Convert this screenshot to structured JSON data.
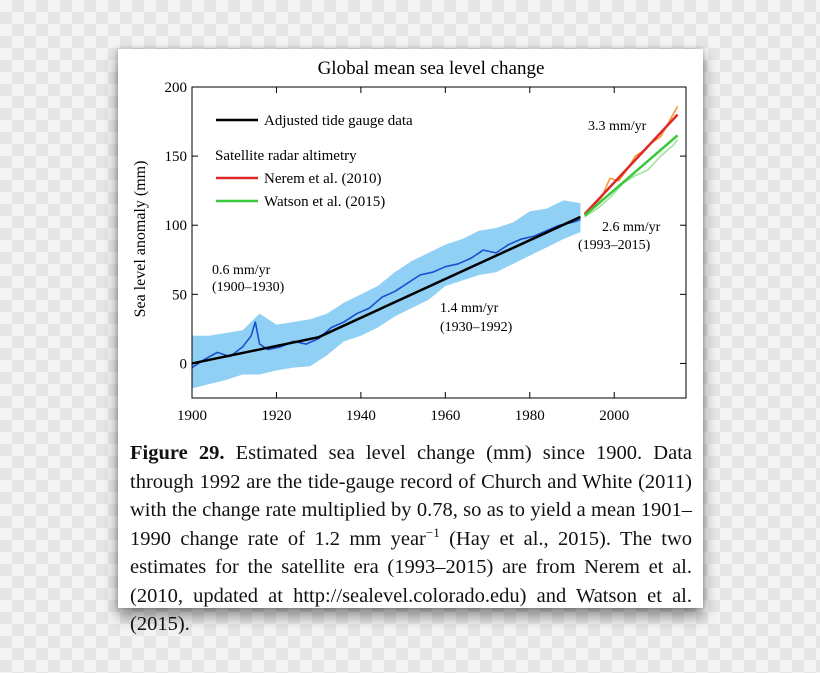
{
  "chart_data": {
    "type": "line",
    "title": "Global mean sea level change",
    "ylabel": "Sea level anomaly (mm)",
    "xlabel": "",
    "xlim": [
      1900,
      2017
    ],
    "ylim": [
      -25,
      200
    ],
    "xticks": [
      1900,
      1920,
      1940,
      1960,
      1980,
      2000
    ],
    "yticks": [
      0,
      50,
      100,
      150,
      200
    ],
    "grid": false,
    "legend_position": "top-left",
    "legend": {
      "line1": "Adjusted tide gauge data",
      "header": "Satellite radar altimetry",
      "line2": "Nerem et al. (2010)",
      "line3": "Watson et al. (2015)"
    },
    "series": [
      {
        "name": "Adjusted tide gauge data",
        "color": "#000000",
        "kind": "trend",
        "x": [
          1900,
          1930,
          1992
        ],
        "y": [
          0,
          19,
          106
        ]
      },
      {
        "name": "Tide gauge uncertainty band",
        "color": "#8fd0f4",
        "kind": "band",
        "x": [
          1900,
          1904,
          1908,
          1912,
          1916,
          1920,
          1924,
          1928,
          1932,
          1936,
          1940,
          1944,
          1948,
          1952,
          1956,
          1960,
          1964,
          1968,
          1972,
          1976,
          1980,
          1984,
          1988,
          1992
        ],
        "lower": [
          -18,
          -15,
          -12,
          -8,
          -8,
          -5,
          -3,
          -2,
          6,
          16,
          20,
          26,
          34,
          40,
          46,
          56,
          60,
          64,
          66,
          72,
          78,
          84,
          90,
          95
        ],
        "upper": [
          20,
          20,
          22,
          24,
          36,
          28,
          30,
          32,
          36,
          44,
          50,
          56,
          66,
          74,
          80,
          86,
          90,
          96,
          98,
          102,
          110,
          112,
          118,
          116
        ]
      },
      {
        "name": "Tide gauge record",
        "color": "#1a4fd0",
        "kind": "noisy",
        "x": [
          1900,
          1903,
          1906,
          1909,
          1912,
          1914,
          1915,
          1916,
          1918,
          1921,
          1924,
          1927,
          1930,
          1933,
          1936,
          1939,
          1942,
          1945,
          1948,
          1951,
          1954,
          1957,
          1960,
          1963,
          1966,
          1969,
          1972,
          1975,
          1978,
          1981,
          1984,
          1987,
          1990,
          1992
        ],
        "y": [
          -3,
          3,
          8,
          5,
          12,
          20,
          30,
          14,
          10,
          12,
          16,
          14,
          18,
          26,
          30,
          36,
          40,
          48,
          52,
          58,
          64,
          66,
          70,
          72,
          76,
          82,
          80,
          86,
          90,
          92,
          96,
          100,
          102,
          104
        ]
      },
      {
        "name": "Nerem et al. (2010)",
        "color": "#e02828",
        "kind": "trend",
        "x": [
          1993,
          2015
        ],
        "y": [
          108,
          180
        ]
      },
      {
        "name": "Watson et al. (2015)",
        "color": "#3cc83c",
        "kind": "trend",
        "x": [
          1993,
          2015
        ],
        "y": [
          107,
          165
        ]
      },
      {
        "name": "Nerem et al. (2010) data",
        "color": "#f29a38",
        "kind": "noisy",
        "x": [
          1993,
          1995,
          1997,
          1999,
          2001,
          2003,
          2005,
          2007,
          2009,
          2011,
          2013,
          2015
        ],
        "y": [
          108,
          114,
          120,
          134,
          132,
          140,
          150,
          154,
          160,
          164,
          175,
          186
        ]
      },
      {
        "name": "Watson et al. (2015) data",
        "color": "#9ee29e",
        "kind": "noisy",
        "x": [
          1993,
          1996,
          1999,
          2002,
          2005,
          2008,
          2011,
          2014,
          2015
        ],
        "y": [
          106,
          112,
          120,
          130,
          136,
          140,
          150,
          158,
          162
        ]
      }
    ],
    "annotations": [
      {
        "line1": "0.6 mm/yr",
        "line2": "(1900–1930)"
      },
      {
        "line1": "1.4 mm/yr",
        "line2": "(1930–1992)"
      },
      {
        "line1": "3.3 mm/yr",
        "line2": ""
      },
      {
        "line1": "2.6 mm/yr",
        "line2": "(1993–2015)"
      }
    ]
  },
  "caption": {
    "label": "Figure 29.",
    "text": " Estimated sea level change (mm) since 1900. Data through 1992 are the tide-gauge record of Church and White (2011) with the change rate multiplied by 0.78, so as to yield a mean 1901–1990 change rate of 1.2 mm year",
    "superscript": "−1",
    "text2": " (Hay et al., 2015). The two estimates for the satellite era (1993–2015) are from Nerem et al. (2010, updated at http://sealevel.colorado.edu) and Watson et al. (2015)."
  }
}
